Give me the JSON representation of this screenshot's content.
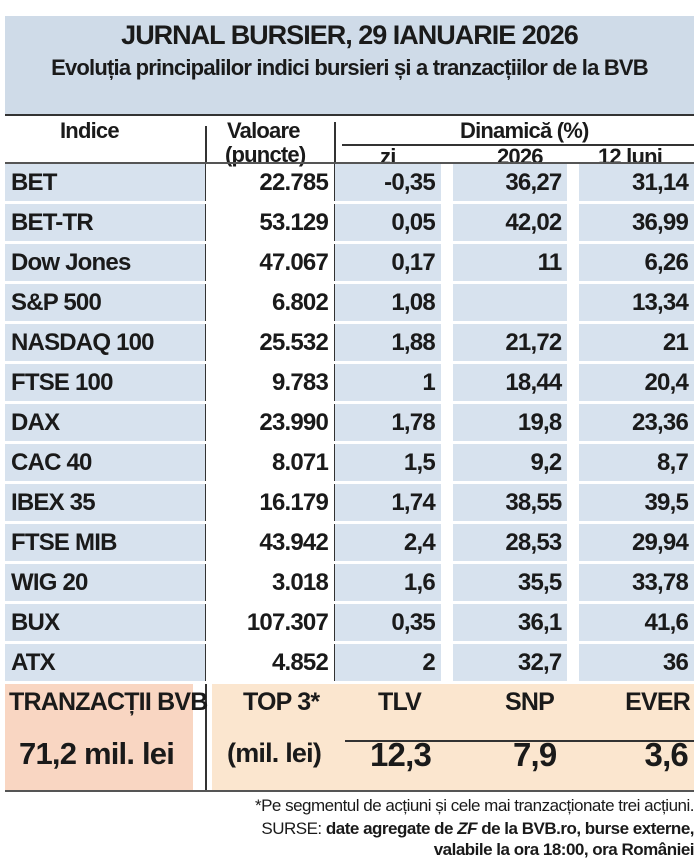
{
  "title": "JURNAL BURSIER, 29 IANUARIE 2026",
  "subtitle": "Evoluția principalilor indici bursieri și a tranzacțiilor de la BVB",
  "headers": {
    "indice": "Indice",
    "valoare": "Valoare",
    "puncte": "(puncte)",
    "dinamica": "Dinamică (%)",
    "zi": "zi",
    "an": "2026",
    "luni": "12 luni"
  },
  "rows": [
    {
      "name": "BET",
      "value": "22.785",
      "zi": "-0,35",
      "an": "36,27",
      "luni": "31,14"
    },
    {
      "name": "BET-TR",
      "value": "53.129",
      "zi": "0,05",
      "an": "42,02",
      "luni": "36,99"
    },
    {
      "name": "Dow Jones",
      "value": "47.067",
      "zi": "0,17",
      "an": "11",
      "luni": "6,26"
    },
    {
      "name": "S&P 500",
      "value": "6.802",
      "zi": "1,08",
      "an": "",
      "luni": "13,34"
    },
    {
      "name": "NASDAQ 100",
      "value": "25.532",
      "zi": "1,88",
      "an": "21,72",
      "luni": "21"
    },
    {
      "name": "FTSE 100",
      "value": "9.783",
      "zi": "1",
      "an": "18,44",
      "luni": "20,4"
    },
    {
      "name": "DAX",
      "value": "23.990",
      "zi": "1,78",
      "an": "19,8",
      "luni": "23,36"
    },
    {
      "name": "CAC 40",
      "value": "8.071",
      "zi": "1,5",
      "an": "9,2",
      "luni": "8,7"
    },
    {
      "name": "IBEX 35",
      "value": "16.179",
      "zi": "1,74",
      "an": "38,55",
      "luni": "39,5"
    },
    {
      "name": "FTSE MIB",
      "value": "43.942",
      "zi": "2,4",
      "an": "28,53",
      "luni": "29,94"
    },
    {
      "name": "WIG 20",
      "value": "3.018",
      "zi": "1,6",
      "an": "35,5",
      "luni": "33,78"
    },
    {
      "name": "BUX",
      "value": "107.307",
      "zi": "0,35",
      "an": "36,1",
      "luni": "41,6"
    },
    {
      "name": "ATX",
      "value": "4.852",
      "zi": "2",
      "an": "32,7",
      "luni": "36"
    }
  ],
  "bvb": {
    "label": "TRANZACȚII BVB",
    "total": "71,2 mil. lei",
    "top_label": "TOP 3*",
    "unit": "(mil. lei)",
    "top": [
      {
        "name": "TLV",
        "value": "12,3"
      },
      {
        "name": "SNP",
        "value": "7,9"
      },
      {
        "name": "EVER",
        "value": "3,6"
      }
    ]
  },
  "footnote": "*Pe segmentul de acțiuni și cele mai tranzacționate trei acțiuni.",
  "source_label": "SURSE:",
  "source_1": "date agregate de",
  "source_zf": "ZF",
  "source_2": "de la BVB.ro, burse externe,",
  "source_3": "valabile la ora 18:00, ora României"
}
